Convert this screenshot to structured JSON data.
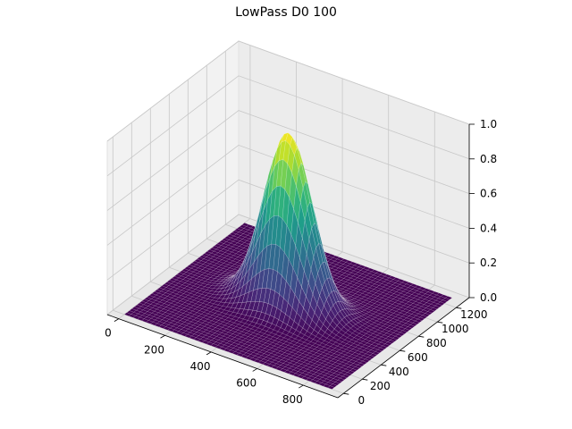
{
  "chart_data": {
    "type": "surface",
    "title": "LowPass D0 100",
    "xlabel": "",
    "ylabel": "",
    "zlabel": "",
    "x_ticks": [
      0,
      200,
      400,
      600,
      800
    ],
    "y_ticks": [
      0,
      200,
      400,
      600,
      800,
      1000,
      1200
    ],
    "z_ticks": [
      "0.0",
      "0.2",
      "0.4",
      "0.6",
      "0.8",
      "1.0"
    ],
    "xlim": [
      -50,
      950
    ],
    "ylim": [
      -60,
      1340
    ],
    "zlim": [
      0,
      1
    ],
    "surface": {
      "function": "gaussian lowpass H = exp(-D^2 / (2 * D0^2))",
      "D0": 100,
      "center": [
        450,
        640
      ],
      "x_range": [
        0,
        900
      ],
      "y_range": [
        0,
        1280
      ],
      "peak": 1.0
    },
    "colormap": "viridis",
    "grid": true
  }
}
